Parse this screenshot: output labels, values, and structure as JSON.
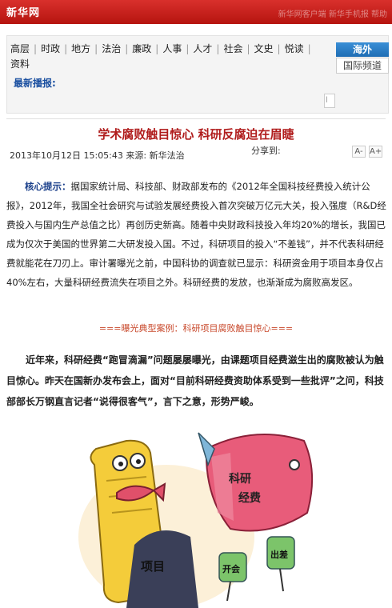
{
  "header": {
    "logo": "新华网",
    "ghost_text": "新华网客户端  新华手机报 帮助"
  },
  "nav": {
    "items": [
      "高层",
      "时政",
      "地方",
      "法治",
      "廉政",
      "人事",
      "人才",
      "社会",
      "文史",
      "悦读",
      "资料"
    ],
    "overseas": "海外",
    "intl": "国际频道",
    "ticker_label": "最新播报:",
    "ticker_box": "l"
  },
  "article": {
    "title": "学术腐败触目惊心  科研反腐迫在眉睫",
    "meta": "2013年10月12日  15:05:43  来源:   新华法治",
    "share": "分享到:",
    "font_small": "A-",
    "font_large": "A+",
    "lead_label": "核心提示：",
    "lead_text": "据国家统计局、科技部、财政部发布的《2012年全国科技经费投入统计公报》，2012年，我国全社会研究与试验发展经费投入首次突破万亿元大关，投入强度（R&D经费投入与国内生产总值之比）再创历史新高。随着中央财政科技投入年均20%的增长，我国已成为仅次于美国的世界第二大研发投入国。不过，科研项目的投入“不差钱”，并不代表科研经费就能花在刀刃上。审计署曝光之前，中国科协的调查就已显示：科研资金用于项目本身仅占40%左右，大量科研经费流失在项目之外。科研经费的发放，也渐渐成为腐败高发区。",
    "expose_title": "===曝光典型案例：科研项目腐败触目惊心===",
    "para2": "近年来，科研经费“跑冒滴漏”问题屡屡曝光，由课题项目经费滋生出的腐败被认为触目惊心。昨天在国新办发布会上，面对“目前科研经费资助体系受到一些批评”之问，科技部部长万钢直言记者“说得很客气”，言下之意，形势严峻。"
  },
  "illustration": {
    "fish_text_1": "科研",
    "fish_text_2": "经费",
    "scroll_text": "项目",
    "tag_left": "开会",
    "tag_right": "出差"
  },
  "colors": {
    "brand_red": "#c8201a",
    "title_red": "#b01c1c",
    "link_blue": "#1a4fa0",
    "overseas_blue": "#2a7cc7"
  }
}
